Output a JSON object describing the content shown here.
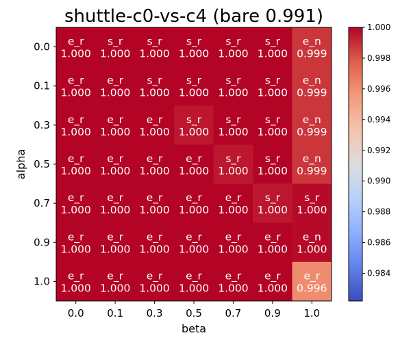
{
  "chart_data": {
    "type": "heatmap",
    "title": "shuttle-c0-vs-c4 (bare 0.991)",
    "xlabel": "beta",
    "ylabel": "alpha",
    "x_categories": [
      "0.0",
      "0.1",
      "0.3",
      "0.5",
      "0.7",
      "0.9",
      "1.0"
    ],
    "y_categories": [
      "0.0",
      "0.1",
      "0.3",
      "0.5",
      "0.7",
      "0.9",
      "1.0"
    ],
    "cell_labels": [
      [
        "e_r",
        "s_r",
        "s_r",
        "s_r",
        "s_r",
        "s_r",
        "e_n"
      ],
      [
        "e_r",
        "e_r",
        "s_r",
        "s_r",
        "s_r",
        "s_r",
        "e_n"
      ],
      [
        "e_r",
        "e_r",
        "e_r",
        "s_r",
        "s_r",
        "s_r",
        "e_n"
      ],
      [
        "e_r",
        "e_r",
        "e_r",
        "e_r",
        "s_r",
        "s_r",
        "e_n"
      ],
      [
        "e_r",
        "e_r",
        "e_r",
        "e_r",
        "e_r",
        "s_r",
        "s_r"
      ],
      [
        "e_r",
        "e_r",
        "e_r",
        "e_r",
        "e_r",
        "e_r",
        "e_n"
      ],
      [
        "e_r",
        "e_r",
        "e_r",
        "e_r",
        "e_r",
        "e_r",
        "e_r"
      ]
    ],
    "value_labels": [
      [
        "1.000",
        "1.000",
        "1.000",
        "1.000",
        "1.000",
        "1.000",
        "0.999"
      ],
      [
        "1.000",
        "1.000",
        "1.000",
        "1.000",
        "1.000",
        "1.000",
        "0.999"
      ],
      [
        "1.000",
        "1.000",
        "1.000",
        "1.000",
        "1.000",
        "1.000",
        "0.999"
      ],
      [
        "1.000",
        "1.000",
        "1.000",
        "1.000",
        "1.000",
        "1.000",
        "0.999"
      ],
      [
        "1.000",
        "1.000",
        "1.000",
        "1.000",
        "1.000",
        "1.000",
        "1.000"
      ],
      [
        "1.000",
        "1.000",
        "1.000",
        "1.000",
        "1.000",
        "1.000",
        "1.000"
      ],
      [
        "1.000",
        "1.000",
        "1.000",
        "1.000",
        "1.000",
        "1.000",
        "0.996"
      ]
    ],
    "values": [
      [
        1.0,
        1.0,
        1.0,
        1.0,
        1.0,
        1.0,
        0.9988
      ],
      [
        1.0,
        1.0,
        1.0,
        1.0,
        1.0,
        1.0,
        0.9988
      ],
      [
        1.0,
        1.0,
        1.0,
        0.99955,
        1.0,
        1.0,
        0.9988
      ],
      [
        1.0,
        1.0,
        1.0,
        1.0,
        0.99955,
        1.0,
        0.9988
      ],
      [
        1.0,
        1.0,
        1.0,
        1.0,
        1.0,
        0.99955,
        0.99985
      ],
      [
        1.0,
        1.0,
        1.0,
        1.0,
        1.0,
        1.0,
        0.99985
      ],
      [
        1.0,
        1.0,
        1.0,
        1.0,
        1.0,
        1.0,
        0.9961
      ]
    ],
    "colormap": "coolwarm",
    "color_range": [
      0.9822,
      1.0
    ],
    "colorbar_ticks": [
      "0.984",
      "0.986",
      "0.988",
      "0.990",
      "0.992",
      "0.994",
      "0.996",
      "0.998",
      "1.000"
    ],
    "text_color": "#ffffff"
  }
}
